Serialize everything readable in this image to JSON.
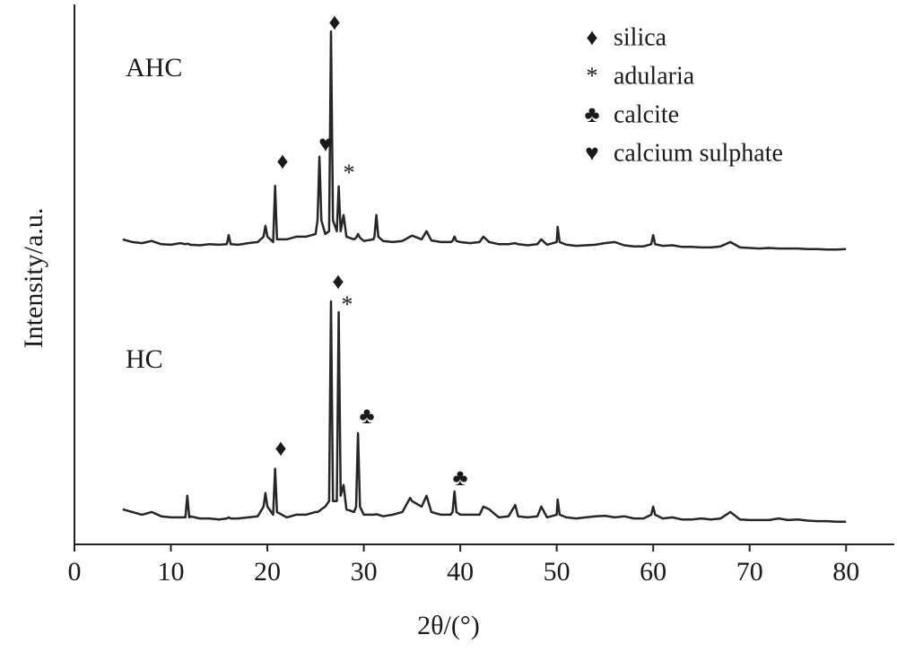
{
  "chart_data": {
    "type": "line",
    "x_label": "2θ/(°)",
    "y_label": "Intensity/a.u.",
    "x": [
      5,
      6,
      7,
      8,
      9,
      10,
      11,
      11.5,
      11.7,
      11.9,
      12,
      13,
      14,
      15,
      15.8,
      16,
      16.2,
      17,
      18,
      19,
      19.6,
      19.8,
      20,
      20.6,
      20.8,
      21,
      22,
      23,
      24,
      25,
      25.2,
      25.4,
      25.6,
      26,
      26.4,
      26.6,
      26.8,
      27.2,
      27.4,
      27.6,
      27.9,
      28.2,
      29,
      29.2,
      29.4,
      29.6,
      30,
      31,
      31.1,
      31.3,
      31.5,
      32,
      33,
      34,
      34.8,
      35,
      36,
      36.5,
      37,
      38,
      39,
      39.2,
      39.4,
      39.6,
      40,
      41,
      42,
      42.4,
      43,
      44,
      45,
      45.7,
      46,
      47,
      48,
      48.4,
      49,
      50,
      50.1,
      50.3,
      51,
      52,
      53,
      54,
      55,
      56,
      57,
      58,
      59,
      59.8,
      60,
      60.2,
      61,
      62,
      63,
      64,
      65,
      66,
      67,
      68,
      69,
      70,
      71,
      72,
      73,
      74,
      75,
      76,
      77,
      78,
      79,
      80
    ],
    "series": [
      {
        "name": "AHC",
        "color": "#262626",
        "values": [
          56.5,
          56,
          55.8,
          56.2,
          55.6,
          55.5,
          55.8,
          55.6,
          55.7,
          55.6,
          55.5,
          55.4,
          55.6,
          55.5,
          55.6,
          57.3,
          55.6,
          55.5,
          55.8,
          56,
          57,
          59,
          57,
          56,
          66.4,
          56.5,
          56.5,
          57,
          57,
          57.5,
          60,
          71.8,
          60,
          57.5,
          58,
          95,
          60,
          58,
          66.3,
          58,
          61,
          57,
          56.5,
          56.8,
          57.5,
          56.8,
          56.2,
          56.5,
          57,
          61,
          57,
          56.2,
          56,
          56.2,
          57,
          57.2,
          56.5,
          58,
          56.3,
          56,
          56,
          56.2,
          57,
          56.2,
          56,
          55.8,
          56,
          57,
          56,
          55.6,
          55.6,
          55.8,
          55.6,
          55.4,
          55.6,
          56.5,
          55.5,
          56,
          58.8,
          56,
          55.5,
          55.3,
          55.4,
          55.5,
          55.8,
          56,
          55.4,
          55.2,
          55.2,
          55.6,
          57.3,
          55.6,
          55.3,
          55.4,
          55.1,
          55.1,
          55,
          55,
          55.2,
          56,
          55,
          54.9,
          54.8,
          54.9,
          54.8,
          54.8,
          54.8,
          54.7,
          54.7,
          54.6,
          54.6,
          54.7
        ]
      },
      {
        "name": "HC",
        "color": "#262626",
        "values": [
          6.5,
          6,
          5.5,
          6,
          5.2,
          5,
          5,
          5,
          9,
          5,
          5.2,
          4.8,
          4.8,
          4.6,
          4.8,
          5,
          4.8,
          4.8,
          5,
          5.2,
          7,
          9.5,
          7,
          5.5,
          14,
          6,
          5,
          5.5,
          5.5,
          6,
          6,
          6.2,
          6.5,
          7,
          8,
          45,
          8,
          8,
          43,
          9,
          11,
          6.5,
          6,
          7,
          20.6,
          7,
          5.5,
          5.5,
          5.5,
          5.6,
          5.5,
          5.2,
          5.5,
          6,
          8.6,
          8,
          7,
          9,
          6,
          5.5,
          5.5,
          6,
          9.8,
          6,
          5.5,
          5.5,
          5.5,
          7,
          6.5,
          5,
          5.2,
          7.3,
          5.2,
          5,
          5.2,
          7,
          5,
          5.5,
          8.3,
          5.5,
          5,
          4.8,
          5,
          5.2,
          5.3,
          5,
          5.2,
          4.8,
          4.8,
          5.5,
          7,
          5.5,
          4.8,
          5,
          4.6,
          4.6,
          4.8,
          4.6,
          4.8,
          6,
          4.6,
          4.5,
          4.5,
          4.5,
          4.8,
          4.5,
          4.6,
          4.4,
          4.3,
          4.3,
          4.2,
          4.2
        ]
      }
    ],
    "xlim": [
      0,
      85
    ],
    "xticks": [
      0,
      10,
      20,
      30,
      40,
      50,
      60,
      70,
      80
    ],
    "ylim": [
      0,
      100
    ],
    "annotations": [
      {
        "text": "♦"
      },
      {
        "text": "♦"
      },
      {
        "text": "♥"
      },
      {
        "text": "*"
      },
      {
        "text": "♦"
      },
      {
        "text": "*"
      },
      {
        "text": "♣"
      },
      {
        "text": "♦"
      },
      {
        "text": "♣"
      }
    ],
    "legend_items": [
      {
        "symbol": "♦",
        "label": "silica"
      },
      {
        "symbol": "*",
        "label": "adularia"
      },
      {
        "symbol": "♣",
        "label": "calcite"
      },
      {
        "symbol": "♥",
        "label": "calcium sulphate"
      }
    ]
  }
}
